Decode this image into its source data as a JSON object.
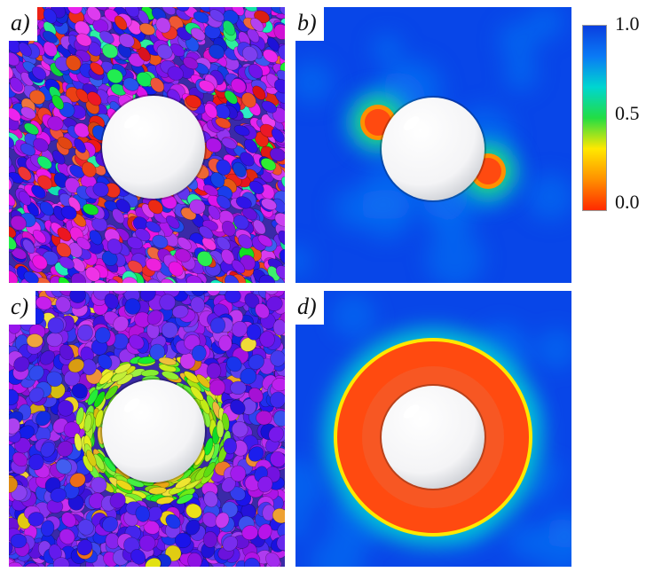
{
  "panels": [
    {
      "label": "a)",
      "kind": "particles",
      "ordering": "nematic"
    },
    {
      "label": "b)",
      "kind": "field",
      "ordering": "two-defects"
    },
    {
      "label": "c)",
      "kind": "particles",
      "ordering": "ring"
    },
    {
      "label": "d)",
      "kind": "field",
      "ordering": "ring"
    }
  ],
  "colorbar": {
    "tick_max": "1.0",
    "tick_mid": "0.5",
    "tick_min": "0.0",
    "colors": [
      "#ff2a00",
      "#ff9000",
      "#ffe800",
      "#22dd44",
      "#00d6d0",
      "#0a7af5",
      "#0a3fe0"
    ]
  },
  "colors": {
    "field_background": "#0846e8",
    "sphere": "#f4f4f6",
    "defect_core": "#ff4a10"
  }
}
